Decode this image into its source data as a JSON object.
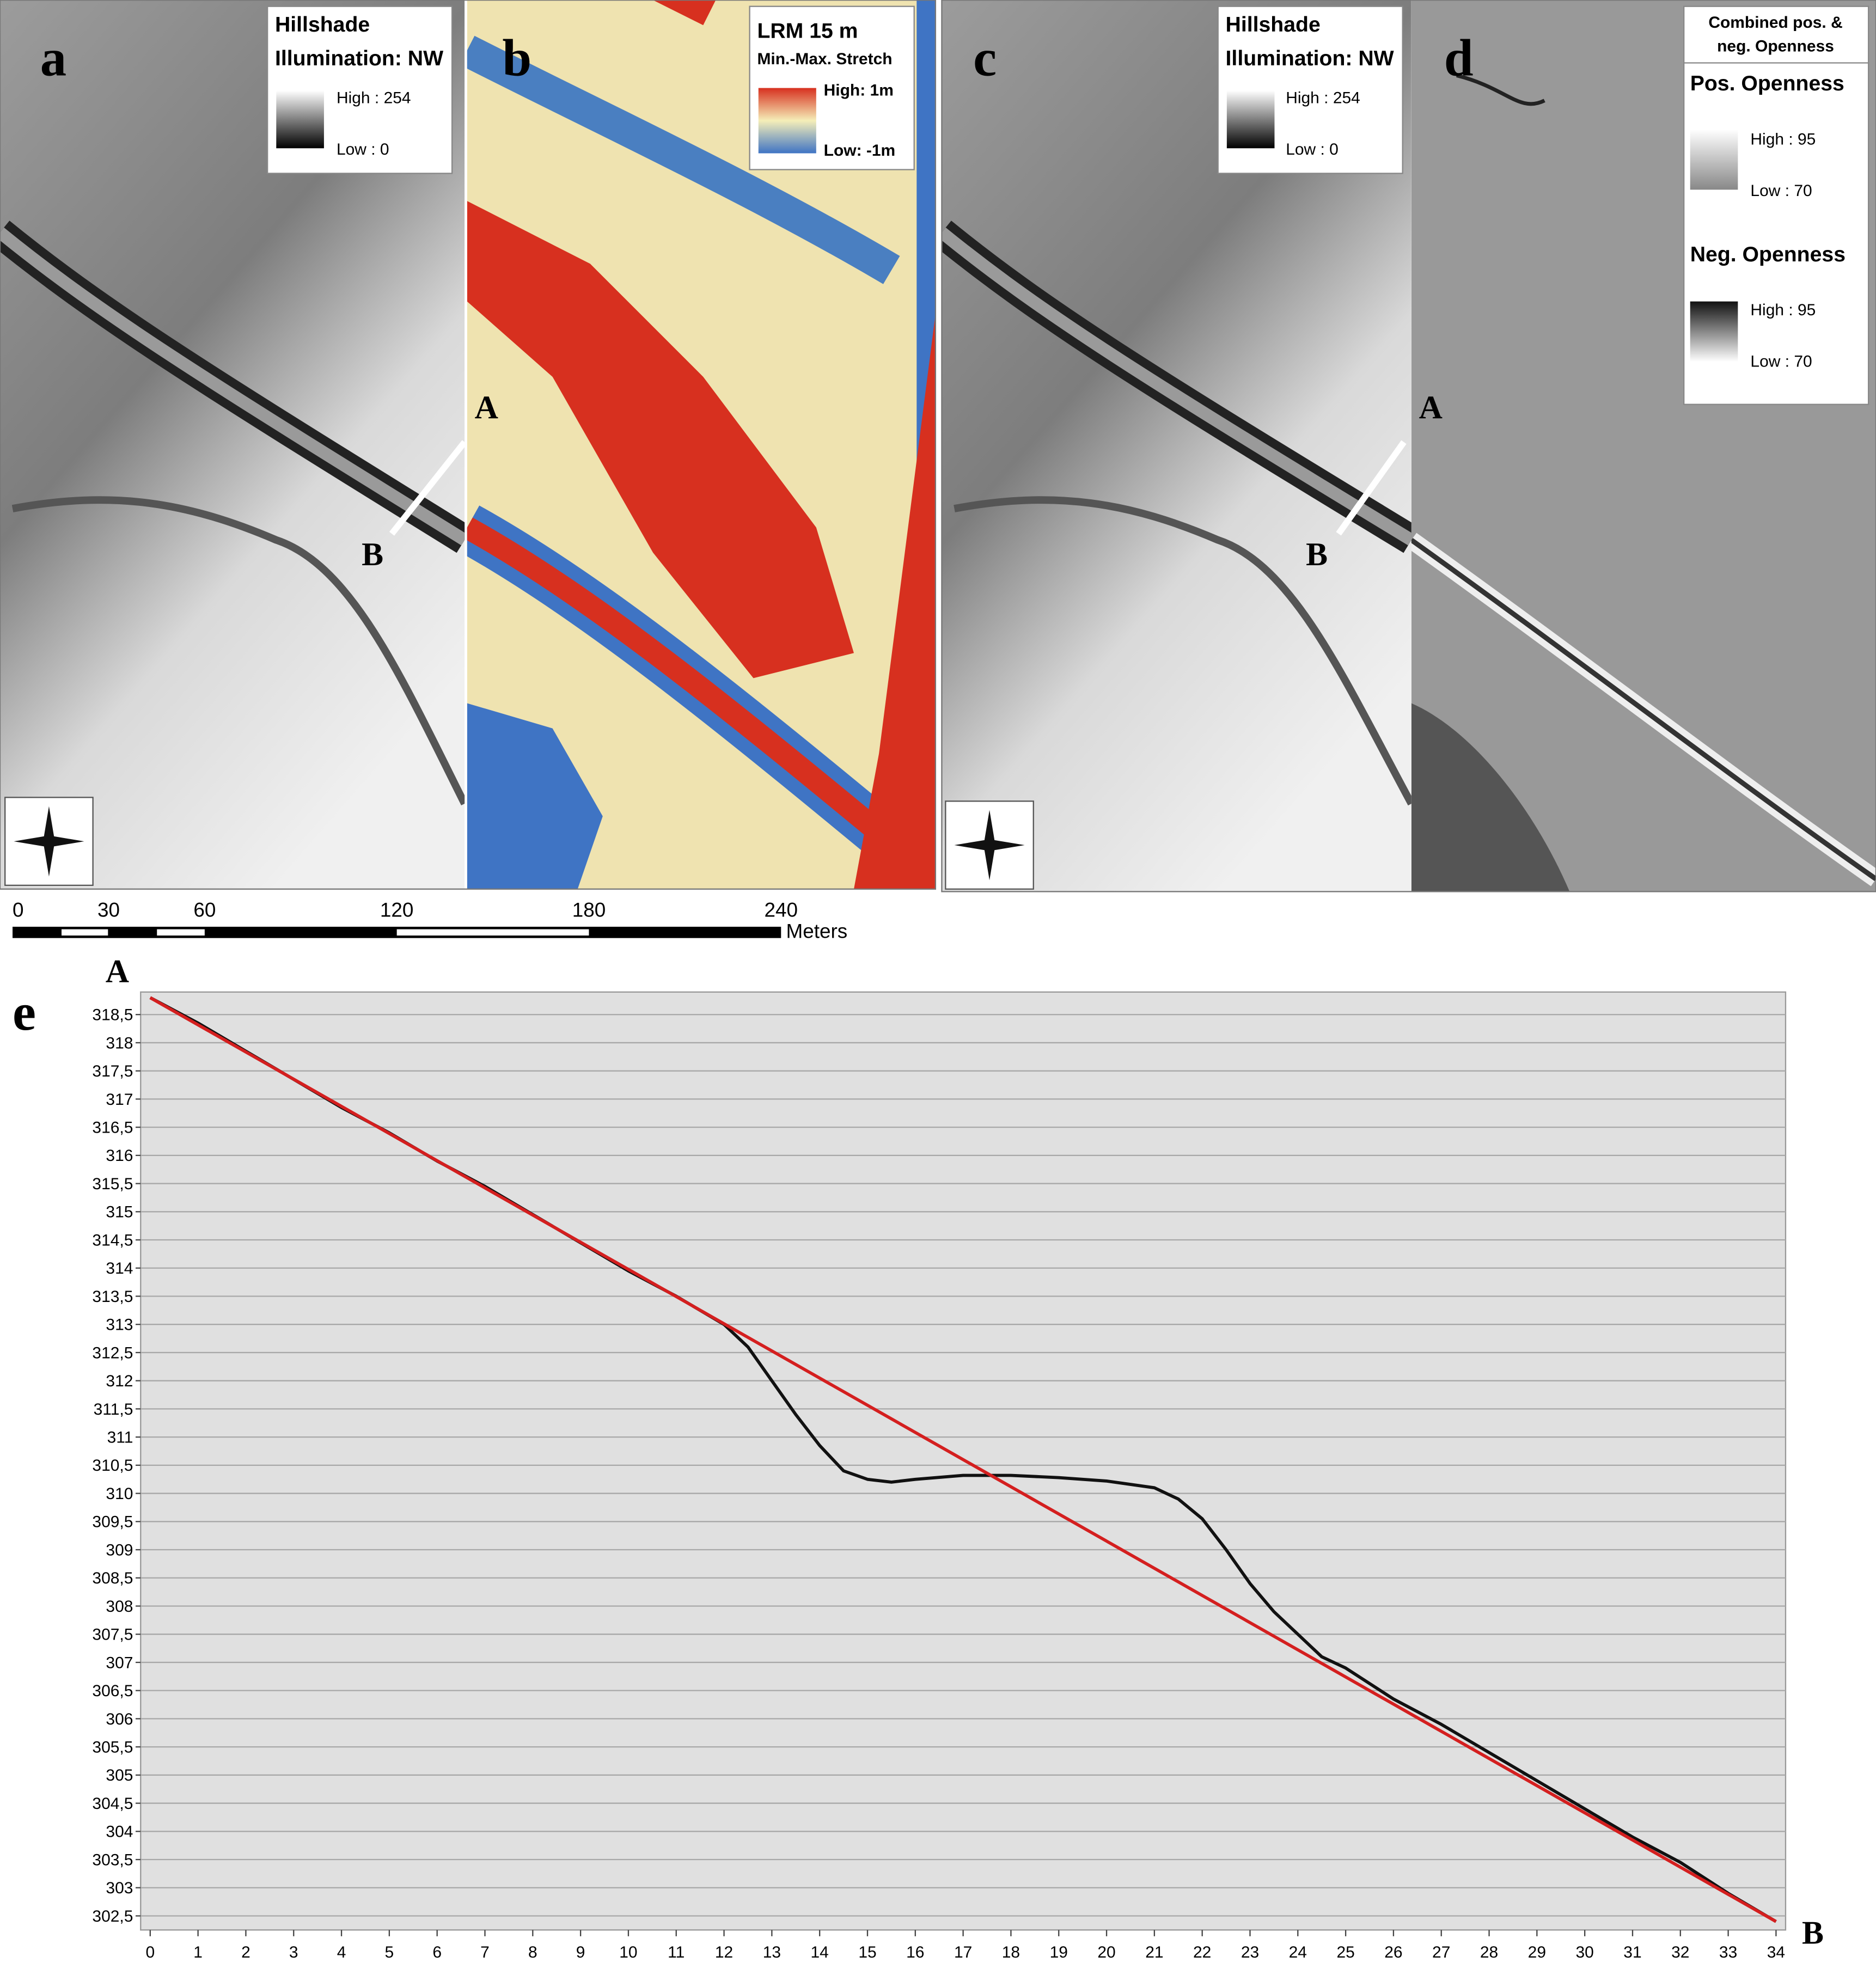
{
  "panels": {
    "a": {
      "label": "a",
      "legend": {
        "title": "Hillshade",
        "subtitle": "Illumination: NW",
        "high": "High : 254",
        "low": "Low : 0"
      },
      "section": {
        "start": "A",
        "end": "B"
      }
    },
    "b": {
      "label": "b",
      "legend": {
        "title": "LRM 15 m",
        "subtitle": "Min.-Max. Stretch",
        "high": "High: 1m",
        "low": "Low: -1m"
      }
    },
    "c": {
      "label": "c",
      "legend": {
        "title": "Hillshade",
        "subtitle": "Illumination: NW",
        "high": "High : 254",
        "low": "Low : 0"
      },
      "section": {
        "start": "A",
        "end": "B"
      }
    },
    "d": {
      "label": "d",
      "legend": {
        "title_lines": [
          "Combined pos. &",
          "neg. Openness"
        ],
        "pos_title": "Pos. Openness",
        "pos_high": "High : 95",
        "pos_low": "Low : 70",
        "neg_title": "Neg. Openness",
        "neg_high": "High : 95",
        "neg_low": "Low : 70"
      }
    }
  },
  "scale_bar": {
    "ticks": [
      0,
      30,
      60,
      120,
      180,
      240
    ],
    "unit": "Meters"
  },
  "chart_data": {
    "type": "line",
    "panel_label": "e",
    "start_label": "A",
    "end_label": "B",
    "xlim": [
      -0.2,
      34.2
    ],
    "ylim": [
      302.25,
      318.9
    ],
    "xticks": [
      0,
      1,
      2,
      3,
      4,
      5,
      6,
      7,
      8,
      9,
      10,
      11,
      12,
      13,
      14,
      15,
      16,
      17,
      18,
      19,
      20,
      21,
      22,
      23,
      24,
      25,
      26,
      27,
      28,
      29,
      30,
      31,
      32,
      33,
      34
    ],
    "yticks": [
      {
        "value": 302.5,
        "label": "302,5"
      },
      303,
      {
        "value": 303.5,
        "label": "303,5"
      },
      304,
      {
        "value": 304.5,
        "label": "304,5"
      },
      305,
      {
        "value": 305.5,
        "label": "305,5"
      },
      306,
      {
        "value": 306.5,
        "label": "306,5"
      },
      307,
      {
        "value": 307.5,
        "label": "307,5"
      },
      308,
      {
        "value": 308.5,
        "label": "308,5"
      },
      309,
      {
        "value": 309.5,
        "label": "309,5"
      },
      310,
      {
        "value": 310.5,
        "label": "310,5"
      },
      311,
      {
        "value": 311.5,
        "label": "311,5"
      },
      312,
      {
        "value": 312.5,
        "label": "312,5"
      },
      313,
      {
        "value": 313.5,
        "label": "313,5"
      },
      314,
      {
        "value": 314.5,
        "label": "314,5"
      },
      315,
      {
        "value": 315.5,
        "label": "315,5"
      },
      316,
      {
        "value": 316.5,
        "label": "316,5"
      },
      317,
      {
        "value": 317.5,
        "label": "317,5"
      },
      318,
      {
        "value": 318.5,
        "label": "318,5"
      }
    ],
    "grid": true,
    "series": [
      {
        "color": "#111111",
        "x": [
          0,
          1,
          2,
          3,
          4,
          5,
          6,
          7,
          8,
          9,
          10,
          11,
          12,
          12.5,
          13,
          13.5,
          14,
          14.5,
          15,
          15.5,
          16,
          17,
          18,
          19,
          20,
          21,
          21.5,
          22,
          22.5,
          23,
          23.5,
          24,
          24.5,
          25,
          26,
          27,
          28,
          29,
          30,
          31,
          32,
          33,
          34
        ],
        "values": [
          318.8,
          318.35,
          317.85,
          317.35,
          316.85,
          316.4,
          315.9,
          315.45,
          314.95,
          314.45,
          313.95,
          313.5,
          313.0,
          312.6,
          312.0,
          311.4,
          310.85,
          310.4,
          310.25,
          310.2,
          310.25,
          310.32,
          310.32,
          310.28,
          310.22,
          310.1,
          309.9,
          309.55,
          309.0,
          308.4,
          307.9,
          307.5,
          307.1,
          306.9,
          306.35,
          305.9,
          305.4,
          304.9,
          304.4,
          303.9,
          303.45,
          302.9,
          302.4
        ]
      },
      {
        "color": "#d41f1f",
        "x": [
          0,
          34
        ],
        "values": [
          318.8,
          302.4
        ]
      }
    ]
  }
}
